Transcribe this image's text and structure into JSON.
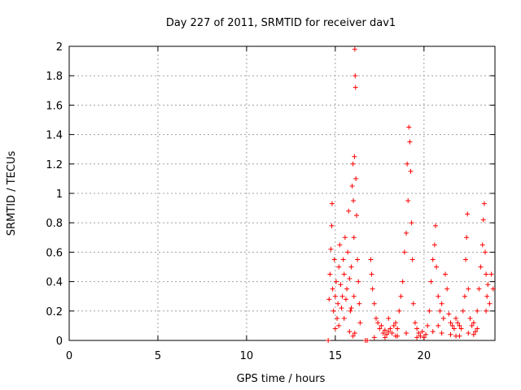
{
  "chart_data": {
    "type": "scatter",
    "title": "Day 227 of 2011, SRMTID for receiver dav1",
    "xlabel": "GPS time / hours",
    "ylabel": "SRMTID / TECUs",
    "xlim": [
      0,
      24
    ],
    "ylim": [
      0,
      2
    ],
    "xticks": [
      0,
      5,
      10,
      15,
      20
    ],
    "yticks": [
      0,
      0.2,
      0.4,
      0.6,
      0.8,
      1,
      1.2,
      1.4,
      1.6,
      1.8,
      2
    ],
    "grid": true,
    "marker": "+",
    "color": "#ff0000",
    "series": [
      {
        "name": "SRMTID",
        "points": [
          [
            14.6,
            0.0
          ],
          [
            14.65,
            0.28
          ],
          [
            14.7,
            0.45
          ],
          [
            14.75,
            0.62
          ],
          [
            14.8,
            0.78
          ],
          [
            14.82,
            0.93
          ],
          [
            14.85,
            0.35
          ],
          [
            14.9,
            0.2
          ],
          [
            14.95,
            0.55
          ],
          [
            15.0,
            0.3
          ],
          [
            15.05,
            0.4
          ],
          [
            15.1,
            0.15
          ],
          [
            15.15,
            0.25
          ],
          [
            15.2,
            0.5
          ],
          [
            15.25,
            0.65
          ],
          [
            15.3,
            0.38
          ],
          [
            15.35,
            0.22
          ],
          [
            15.4,
            0.3
          ],
          [
            15.45,
            0.55
          ],
          [
            15.5,
            0.45
          ],
          [
            15.55,
            0.7
          ],
          [
            15.6,
            0.28
          ],
          [
            15.65,
            0.35
          ],
          [
            15.7,
            0.6
          ],
          [
            15.75,
            0.88
          ],
          [
            15.8,
            0.42
          ],
          [
            15.85,
            0.2
          ],
          [
            15.9,
            0.5
          ],
          [
            15.95,
            1.05
          ],
          [
            16.0,
            1.2
          ],
          [
            16.02,
            0.95
          ],
          [
            16.05,
            0.7
          ],
          [
            16.08,
            1.25
          ],
          [
            16.1,
            1.98
          ],
          [
            16.12,
            1.8
          ],
          [
            16.14,
            1.72
          ],
          [
            16.16,
            1.1
          ],
          [
            16.2,
            0.85
          ],
          [
            16.25,
            0.55
          ],
          [
            16.3,
            0.4
          ],
          [
            16.35,
            0.25
          ],
          [
            16.4,
            0.12
          ],
          [
            15.0,
            0.08
          ],
          [
            15.2,
            0.1
          ],
          [
            15.5,
            0.15
          ],
          [
            15.8,
            0.06
          ],
          [
            16.0,
            0.03
          ],
          [
            16.1,
            0.05
          ],
          [
            16.05,
            0.3
          ],
          [
            15.9,
            0.22
          ],
          [
            16.7,
            0.0
          ],
          [
            16.8,
            0.0
          ],
          [
            17.0,
            0.55
          ],
          [
            17.05,
            0.45
          ],
          [
            17.1,
            0.35
          ],
          [
            17.2,
            0.25
          ],
          [
            17.3,
            0.15
          ],
          [
            17.4,
            0.12
          ],
          [
            17.5,
            0.08
          ],
          [
            17.6,
            0.1
          ],
          [
            17.7,
            0.05
          ],
          [
            17.8,
            0.07
          ],
          [
            17.9,
            0.04
          ],
          [
            18.0,
            0.06
          ],
          [
            18.1,
            0.08
          ],
          [
            18.2,
            0.05
          ],
          [
            18.3,
            0.1
          ],
          [
            18.4,
            0.12
          ],
          [
            18.5,
            0.08
          ],
          [
            18.6,
            0.2
          ],
          [
            18.7,
            0.3
          ],
          [
            18.8,
            0.4
          ],
          [
            18.9,
            0.6
          ],
          [
            19.0,
            0.73
          ],
          [
            19.05,
            1.2
          ],
          [
            19.1,
            0.95
          ],
          [
            19.15,
            1.45
          ],
          [
            19.2,
            1.35
          ],
          [
            19.25,
            1.15
          ],
          [
            19.3,
            0.8
          ],
          [
            19.35,
            0.55
          ],
          [
            19.4,
            0.25
          ],
          [
            19.5,
            0.12
          ],
          [
            19.6,
            0.08
          ],
          [
            19.7,
            0.05
          ],
          [
            19.8,
            0.03
          ],
          [
            19.9,
            0.06
          ],
          [
            20.0,
            0.02
          ],
          [
            20.1,
            0.04
          ],
          [
            20.2,
            0.1
          ],
          [
            20.3,
            0.2
          ],
          [
            20.4,
            0.4
          ],
          [
            20.5,
            0.55
          ],
          [
            20.6,
            0.65
          ],
          [
            20.65,
            0.78
          ],
          [
            20.7,
            0.5
          ],
          [
            20.8,
            0.3
          ],
          [
            20.9,
            0.2
          ],
          [
            21.0,
            0.25
          ],
          [
            21.1,
            0.15
          ],
          [
            21.2,
            0.45
          ],
          [
            21.3,
            0.35
          ],
          [
            21.4,
            0.18
          ],
          [
            21.5,
            0.12
          ],
          [
            21.6,
            0.1
          ],
          [
            21.7,
            0.08
          ],
          [
            21.8,
            0.15
          ],
          [
            21.9,
            0.12
          ],
          [
            22.0,
            0.1
          ],
          [
            22.1,
            0.08
          ],
          [
            22.2,
            0.2
          ],
          [
            22.3,
            0.3
          ],
          [
            22.35,
            0.55
          ],
          [
            22.4,
            0.7
          ],
          [
            22.45,
            0.86
          ],
          [
            22.5,
            0.35
          ],
          [
            22.6,
            0.15
          ],
          [
            22.7,
            0.1
          ],
          [
            22.8,
            0.12
          ],
          [
            22.9,
            0.06
          ],
          [
            23.0,
            0.2
          ],
          [
            23.1,
            0.35
          ],
          [
            23.2,
            0.5
          ],
          [
            23.3,
            0.65
          ],
          [
            23.35,
            0.82
          ],
          [
            23.4,
            0.93
          ],
          [
            23.45,
            0.6
          ],
          [
            23.5,
            0.45
          ],
          [
            23.55,
            0.3
          ],
          [
            23.6,
            0.38
          ],
          [
            23.7,
            0.25
          ],
          [
            23.8,
            0.45
          ],
          [
            23.9,
            0.35
          ],
          [
            17.2,
            0.02
          ],
          [
            17.8,
            0.02
          ],
          [
            18.5,
            0.03
          ],
          [
            19.0,
            0.05
          ],
          [
            19.6,
            0.02
          ],
          [
            20.5,
            0.06
          ],
          [
            21.0,
            0.05
          ],
          [
            21.5,
            0.04
          ],
          [
            22.0,
            0.03
          ],
          [
            22.5,
            0.05
          ],
          [
            23.0,
            0.08
          ],
          [
            23.5,
            0.2
          ],
          [
            18.0,
            0.15
          ],
          [
            18.4,
            0.03
          ],
          [
            20.8,
            0.1
          ],
          [
            21.8,
            0.03
          ],
          [
            22.8,
            0.04
          ]
        ]
      }
    ]
  }
}
